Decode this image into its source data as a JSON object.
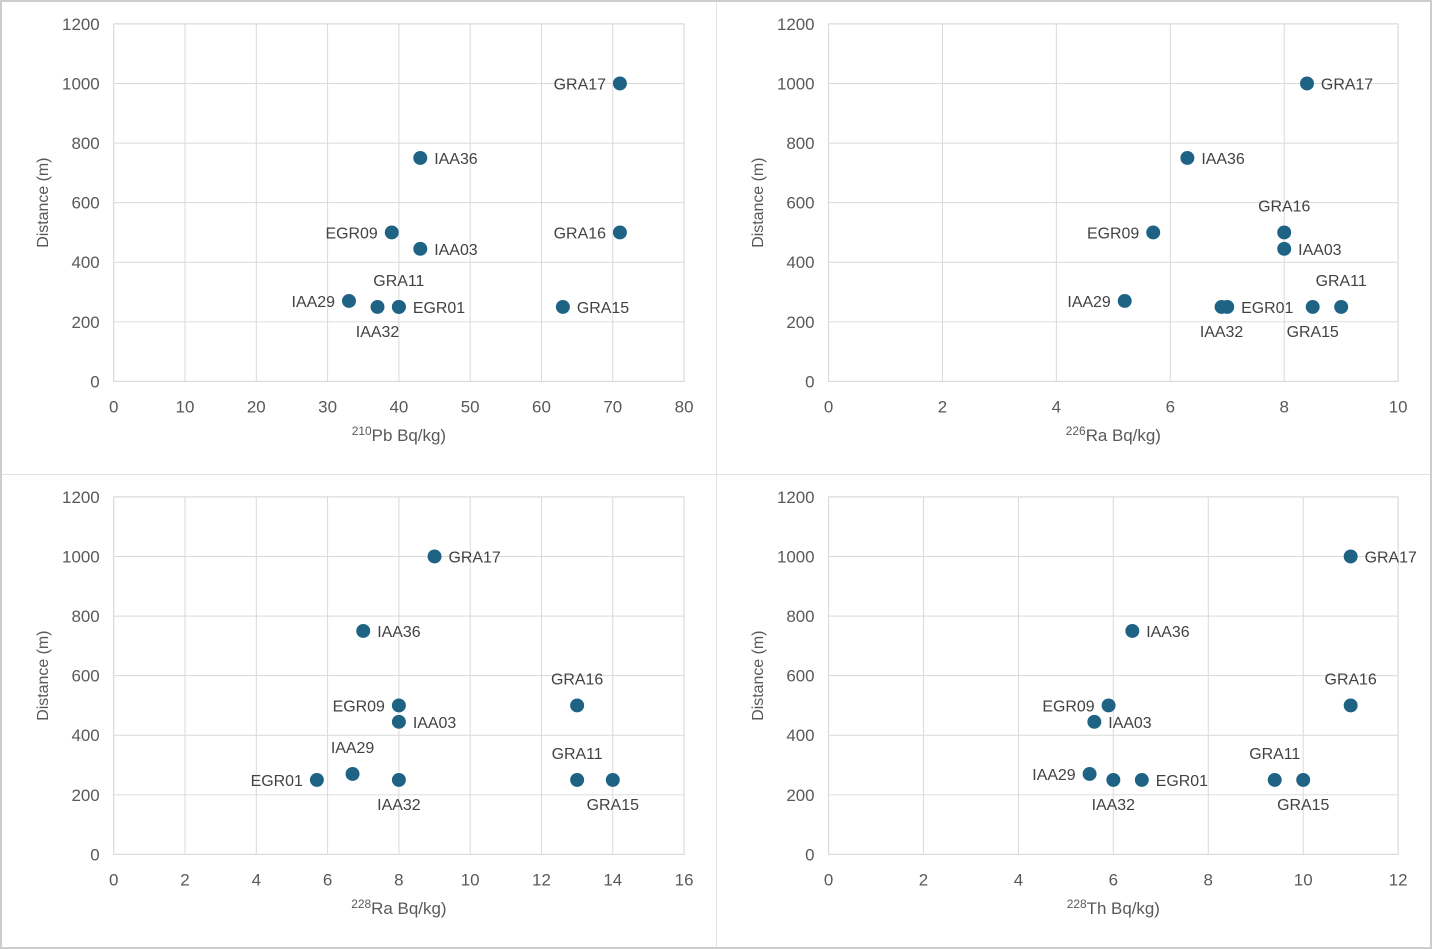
{
  "page": {
    "background": "#ffffff",
    "outer_border_color": "#cdcdcd",
    "divider_color": "#e3e3e3"
  },
  "chart_style": {
    "dot_color": "#1f6384",
    "grid_color": "#d9d9d9",
    "plot_border_color": "#d9d9d9",
    "tick_text_color": "#595959",
    "axis_title_color": "#595959",
    "point_label_color": "#424242",
    "dot_radius": 7
  },
  "chart_data": [
    {
      "id": "pb210",
      "type": "scatter",
      "position": "top-left",
      "xlabel": {
        "sup": "210",
        "text": "Pb Bq/kg)"
      },
      "ylabel": "Distance (m)",
      "xlim": [
        0,
        80
      ],
      "xticks": [
        0,
        10,
        20,
        30,
        40,
        50,
        60,
        70,
        80
      ],
      "ylim": [
        0,
        1200
      ],
      "yticks": [
        0,
        200,
        400,
        600,
        800,
        1000,
        1200
      ],
      "grid": true,
      "legend": "none",
      "points": [
        {
          "name": "GRA17",
          "x": 71,
          "y": 1000,
          "label": "left"
        },
        {
          "name": "IAA36",
          "x": 43,
          "y": 750,
          "label": "right"
        },
        {
          "name": "EGR09",
          "x": 39,
          "y": 500,
          "label": "left"
        },
        {
          "name": "IAA03",
          "x": 43,
          "y": 445,
          "label": "right"
        },
        {
          "name": "GRA16",
          "x": 71,
          "y": 500,
          "label": "left"
        },
        {
          "name": "GRA11",
          "x": 40,
          "y": 250,
          "label": "above"
        },
        {
          "name": "IAA29",
          "x": 33,
          "y": 270,
          "label": "left"
        },
        {
          "name": "IAA32",
          "x": 37,
          "y": 250,
          "label": "below"
        },
        {
          "name": "EGR01",
          "x": 40,
          "y": 250,
          "label": "right"
        },
        {
          "name": "GRA15",
          "x": 63,
          "y": 250,
          "label": "right"
        }
      ]
    },
    {
      "id": "ra226",
      "type": "scatter",
      "position": "top-right",
      "xlabel": {
        "sup": "226",
        "text": "Ra Bq/kg)"
      },
      "ylabel": "Distance (m)",
      "xlim": [
        0,
        10
      ],
      "xticks": [
        0,
        2,
        4,
        6,
        8,
        10
      ],
      "ylim": [
        0,
        1200
      ],
      "yticks": [
        0,
        200,
        400,
        600,
        800,
        1000,
        1200
      ],
      "grid": true,
      "legend": "none",
      "points": [
        {
          "name": "GRA17",
          "x": 8.4,
          "y": 1000,
          "label": "right"
        },
        {
          "name": "IAA36",
          "x": 6.3,
          "y": 750,
          "label": "right"
        },
        {
          "name": "EGR09",
          "x": 5.7,
          "y": 500,
          "label": "left"
        },
        {
          "name": "GRA16",
          "x": 8.0,
          "y": 500,
          "label": "above"
        },
        {
          "name": "IAA03",
          "x": 8.0,
          "y": 445,
          "label": "right"
        },
        {
          "name": "IAA29",
          "x": 5.2,
          "y": 270,
          "label": "left"
        },
        {
          "name": "IAA32",
          "x": 6.9,
          "y": 250,
          "label": "below"
        },
        {
          "name": "EGR01",
          "x": 7.0,
          "y": 250,
          "label": "right"
        },
        {
          "name": "GRA15",
          "x": 8.5,
          "y": 250,
          "label": "below"
        },
        {
          "name": "GRA11",
          "x": 9.0,
          "y": 250,
          "label": "above"
        }
      ]
    },
    {
      "id": "ra228",
      "type": "scatter",
      "position": "bottom-left",
      "xlabel": {
        "sup": "228",
        "text": "Ra Bq/kg)"
      },
      "ylabel": "Distance (m)",
      "xlim": [
        0,
        16
      ],
      "xticks": [
        0,
        2,
        4,
        6,
        8,
        10,
        12,
        14,
        16
      ],
      "ylim": [
        0,
        1200
      ],
      "yticks": [
        0,
        200,
        400,
        600,
        800,
        1000,
        1200
      ],
      "grid": true,
      "legend": "none",
      "points": [
        {
          "name": "GRA17",
          "x": 9.0,
          "y": 1000,
          "label": "right"
        },
        {
          "name": "IAA36",
          "x": 7.0,
          "y": 750,
          "label": "right"
        },
        {
          "name": "EGR09",
          "x": 8.0,
          "y": 500,
          "label": "left"
        },
        {
          "name": "IAA03",
          "x": 8.0,
          "y": 445,
          "label": "right"
        },
        {
          "name": "GRA16",
          "x": 13.0,
          "y": 500,
          "label": "above"
        },
        {
          "name": "IAA29",
          "x": 6.7,
          "y": 270,
          "label": "above"
        },
        {
          "name": "EGR01",
          "x": 5.7,
          "y": 250,
          "label": "left"
        },
        {
          "name": "IAA32",
          "x": 8.0,
          "y": 250,
          "label": "below"
        },
        {
          "name": "GRA11",
          "x": 13.0,
          "y": 250,
          "label": "above"
        },
        {
          "name": "GRA15",
          "x": 14.0,
          "y": 250,
          "label": "below"
        }
      ]
    },
    {
      "id": "th228",
      "type": "scatter",
      "position": "bottom-right",
      "xlabel": {
        "sup": "228",
        "text": "Th Bq/kg)"
      },
      "ylabel": "Distance (m)",
      "xlim": [
        0,
        12
      ],
      "xticks": [
        0,
        2,
        4,
        6,
        8,
        10,
        12
      ],
      "ylim": [
        0,
        1200
      ],
      "yticks": [
        0,
        200,
        400,
        600,
        800,
        1000,
        1200
      ],
      "grid": true,
      "legend": "none",
      "points": [
        {
          "name": "GRA17",
          "x": 11.0,
          "y": 1000,
          "label": "right"
        },
        {
          "name": "IAA36",
          "x": 6.4,
          "y": 750,
          "label": "right"
        },
        {
          "name": "EGR09",
          "x": 5.9,
          "y": 500,
          "label": "left"
        },
        {
          "name": "IAA03",
          "x": 5.6,
          "y": 445,
          "label": "right"
        },
        {
          "name": "GRA16",
          "x": 11.0,
          "y": 500,
          "label": "above"
        },
        {
          "name": "IAA29",
          "x": 5.5,
          "y": 270,
          "label": "left"
        },
        {
          "name": "IAA32",
          "x": 6.0,
          "y": 250,
          "label": "below"
        },
        {
          "name": "EGR01",
          "x": 6.6,
          "y": 250,
          "label": "right"
        },
        {
          "name": "GRA11",
          "x": 9.4,
          "y": 250,
          "label": "above"
        },
        {
          "name": "GRA15",
          "x": 10.0,
          "y": 250,
          "label": "below"
        }
      ]
    }
  ]
}
